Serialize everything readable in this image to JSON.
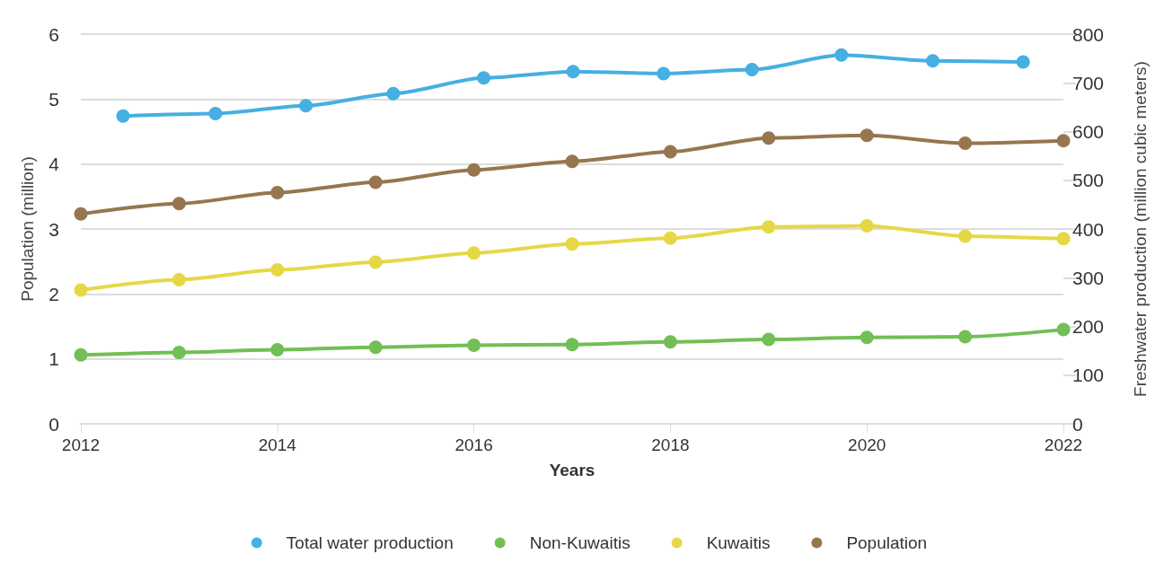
{
  "chart_data": {
    "type": "line",
    "xlabel": "Years",
    "ylabel": "Population (million)",
    "y2label": "Freshwater production (million cubic meters)",
    "x": [
      2012,
      2013,
      2014,
      2015,
      2016,
      2017,
      2018,
      2019,
      2020,
      2021,
      2022
    ],
    "xlim": [
      2012,
      2022
    ],
    "xticks": [
      2012,
      2014,
      2016,
      2018,
      2020,
      2022
    ],
    "ylim": [
      0,
      6
    ],
    "yticks": [
      0,
      1,
      2,
      3,
      4,
      5,
      6
    ],
    "y2lim": [
      0,
      800
    ],
    "y2ticks": [
      0,
      100,
      200,
      300,
      400,
      500,
      600,
      700,
      800
    ],
    "grid": "y",
    "legend": "bottom",
    "marker": "circle",
    "line_style": "solid",
    "series": [
      {
        "name": "Total water production",
        "color": "#45b0e1",
        "axis": "y2",
        "x": [
          2012.43,
          2013.37,
          2014.29,
          2015.18,
          2016.1,
          2017.01,
          2017.93,
          2018.83,
          2019.74,
          2020.67,
          2021.59
        ],
        "values": [
          632,
          637,
          653,
          678,
          710,
          723,
          719,
          727,
          757,
          745,
          743
        ]
      },
      {
        "name": "Non-Kuwaitis",
        "color": "#72bf55",
        "values": [
          1.06,
          1.1,
          1.14,
          1.18,
          1.21,
          1.22,
          1.26,
          1.3,
          1.33,
          1.34,
          1.45
        ]
      },
      {
        "name": "Kuwaitis",
        "color": "#e6d845",
        "values": [
          2.06,
          2.22,
          2.37,
          2.49,
          2.63,
          2.77,
          2.86,
          3.03,
          3.05,
          2.89,
          2.85
        ]
      },
      {
        "name": "Population",
        "color": "#97764f",
        "values": [
          3.23,
          3.39,
          3.56,
          3.72,
          3.91,
          4.04,
          4.19,
          4.4,
          4.44,
          4.32,
          4.36
        ]
      }
    ]
  }
}
